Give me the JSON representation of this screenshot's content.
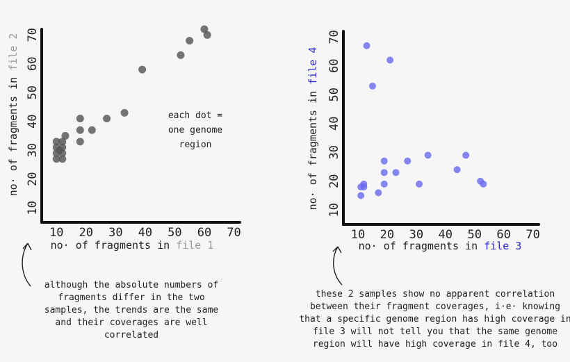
{
  "chart_data": [
    {
      "type": "scatter",
      "xlabel_prefix": "no· of fragments in ",
      "xlabel_file": "file 1",
      "ylabel_prefix": "no· of fragments in ",
      "ylabel_file": "file 2",
      "xlim": [
        5,
        72
      ],
      "ylim": [
        5,
        72
      ],
      "xticks": [
        10,
        20,
        30,
        40,
        50,
        60,
        70
      ],
      "yticks": [
        10,
        20,
        30,
        40,
        50,
        60,
        70
      ],
      "x_tick_labels": [
        "10",
        "20",
        "30",
        "40",
        "50",
        "60",
        "70"
      ],
      "y_tick_labels": [
        "10",
        "20",
        "30",
        "40",
        "50",
        "60",
        "70"
      ],
      "point_color": "#555555",
      "file_color_x": "#999999",
      "file_color_y": "#999999",
      "annotation": [
        "each dot =",
        "one genome",
        "region"
      ],
      "points": [
        {
          "x": 10,
          "y": 27
        },
        {
          "x": 10,
          "y": 29
        },
        {
          "x": 10,
          "y": 31
        },
        {
          "x": 10,
          "y": 33
        },
        {
          "x": 11,
          "y": 30
        },
        {
          "x": 12,
          "y": 27
        },
        {
          "x": 12,
          "y": 29
        },
        {
          "x": 12,
          "y": 31
        },
        {
          "x": 12,
          "y": 33
        },
        {
          "x": 13,
          "y": 35
        },
        {
          "x": 18,
          "y": 33
        },
        {
          "x": 18,
          "y": 37
        },
        {
          "x": 18,
          "y": 41
        },
        {
          "x": 22,
          "y": 37
        },
        {
          "x": 27,
          "y": 41
        },
        {
          "x": 33,
          "y": 43
        },
        {
          "x": 39,
          "y": 58
        },
        {
          "x": 52,
          "y": 63
        },
        {
          "x": 55,
          "y": 68
        },
        {
          "x": 60,
          "y": 72
        },
        {
          "x": 61,
          "y": 70
        }
      ]
    },
    {
      "type": "scatter",
      "xlabel_prefix": "no· of fragments in ",
      "xlabel_file": "file 3",
      "ylabel_prefix": "no· of fragments in ",
      "ylabel_file": "file 4",
      "xlim": [
        5,
        72
      ],
      "ylim": [
        5,
        72
      ],
      "xticks": [
        10,
        20,
        30,
        40,
        50,
        60,
        70
      ],
      "yticks": [
        10,
        20,
        30,
        40,
        50,
        60,
        70
      ],
      "x_tick_labels": [
        "10",
        "20",
        "30",
        "40",
        "50",
        "60",
        "70"
      ],
      "y_tick_labels": [
        "10",
        "20",
        "30",
        "40",
        "50",
        "60",
        "70"
      ],
      "point_color": "#6b6bf0",
      "file_color_x": "#2a2ad0",
      "file_color_y": "#2a2ad0",
      "points": [
        {
          "x": 11,
          "y": 15
        },
        {
          "x": 11,
          "y": 18
        },
        {
          "x": 12,
          "y": 18
        },
        {
          "x": 12,
          "y": 19
        },
        {
          "x": 17,
          "y": 16
        },
        {
          "x": 19,
          "y": 19
        },
        {
          "x": 19,
          "y": 23
        },
        {
          "x": 19,
          "y": 27
        },
        {
          "x": 23,
          "y": 23
        },
        {
          "x": 27,
          "y": 27
        },
        {
          "x": 31,
          "y": 19
        },
        {
          "x": 34,
          "y": 29
        },
        {
          "x": 13,
          "y": 67
        },
        {
          "x": 21,
          "y": 62
        },
        {
          "x": 15,
          "y": 53
        },
        {
          "x": 44,
          "y": 24
        },
        {
          "x": 47,
          "y": 29
        },
        {
          "x": 52,
          "y": 20
        },
        {
          "x": 53,
          "y": 19
        }
      ]
    }
  ],
  "notes": {
    "left": [
      "although the absolute numbers of",
      "fragments differ in the two",
      "samples, the trends are the same",
      "and their coverages are well",
      "correlated"
    ],
    "right": [
      "these 2 samples show no apparent correlation",
      "between their fragment coverages, i·e· knowing",
      "that a specific genome region has high coverage in",
      "file 3 will not tell you that the same genome",
      "region will have high coverage in file 4, too"
    ]
  }
}
